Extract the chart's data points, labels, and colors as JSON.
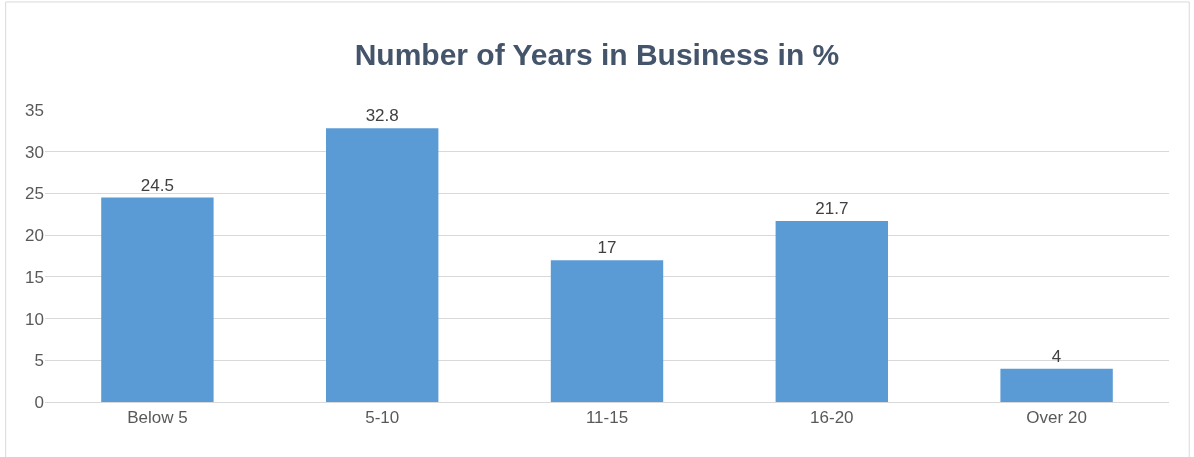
{
  "chart_data": {
    "type": "bar",
    "title": "Number of Years in Business in %",
    "categories": [
      "Below 5",
      "5-10",
      "11-15",
      "16-20",
      "Over 20"
    ],
    "values": [
      24.5,
      32.8,
      17,
      21.7,
      4
    ],
    "color": "#5b9bd5",
    "ylim": [
      0,
      35
    ],
    "yticks": [
      0,
      5,
      10,
      15,
      20,
      25,
      30,
      35
    ],
    "grid": "y",
    "data_labels": true
  }
}
